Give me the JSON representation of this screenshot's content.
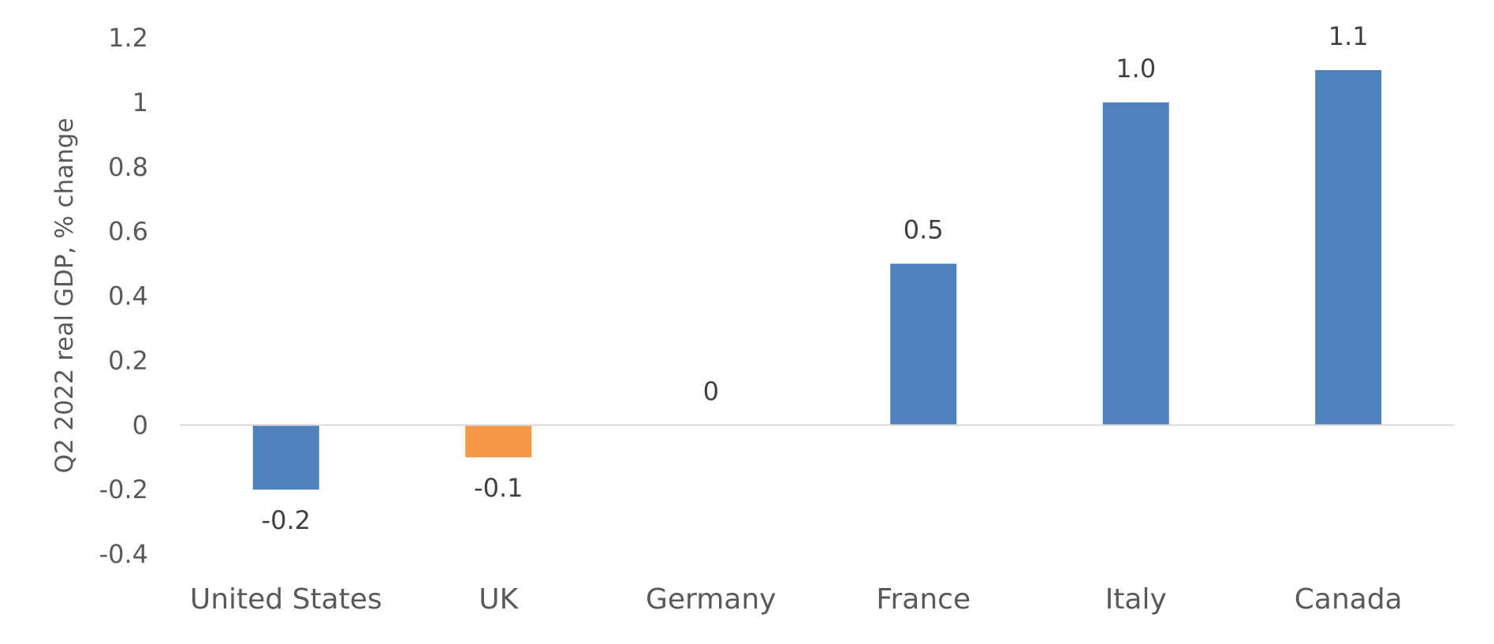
{
  "chart_data": {
    "type": "bar",
    "title": "",
    "xlabel": "",
    "ylabel": "Q2 2022 real GDP, % change",
    "categories": [
      "United States",
      "UK",
      "Germany",
      "France",
      "Italy",
      "Canada"
    ],
    "values": [
      -0.2,
      -0.1,
      0,
      0.5,
      1.0,
      1.1
    ],
    "data_labels": [
      "-0.2",
      "-0.1",
      "0",
      "0.5",
      "1.0",
      "1.1"
    ],
    "bar_colors": [
      "#4F81BD",
      "#F79646",
      "#4F81BD",
      "#4F81BD",
      "#4F81BD",
      "#4F81BD"
    ],
    "ylim": [
      -0.4,
      1.2
    ],
    "yticks": [
      -0.4,
      -0.2,
      0,
      0.2,
      0.4,
      0.6,
      0.8,
      1.0,
      1.2
    ],
    "ytick_labels": [
      "-0.4",
      "-0.2",
      "0",
      "0.2",
      "0.4",
      "0.6",
      "0.8",
      "1",
      "1.2"
    ],
    "grid": false,
    "legend": "none",
    "zero_line_color": "#D9D9D9"
  }
}
